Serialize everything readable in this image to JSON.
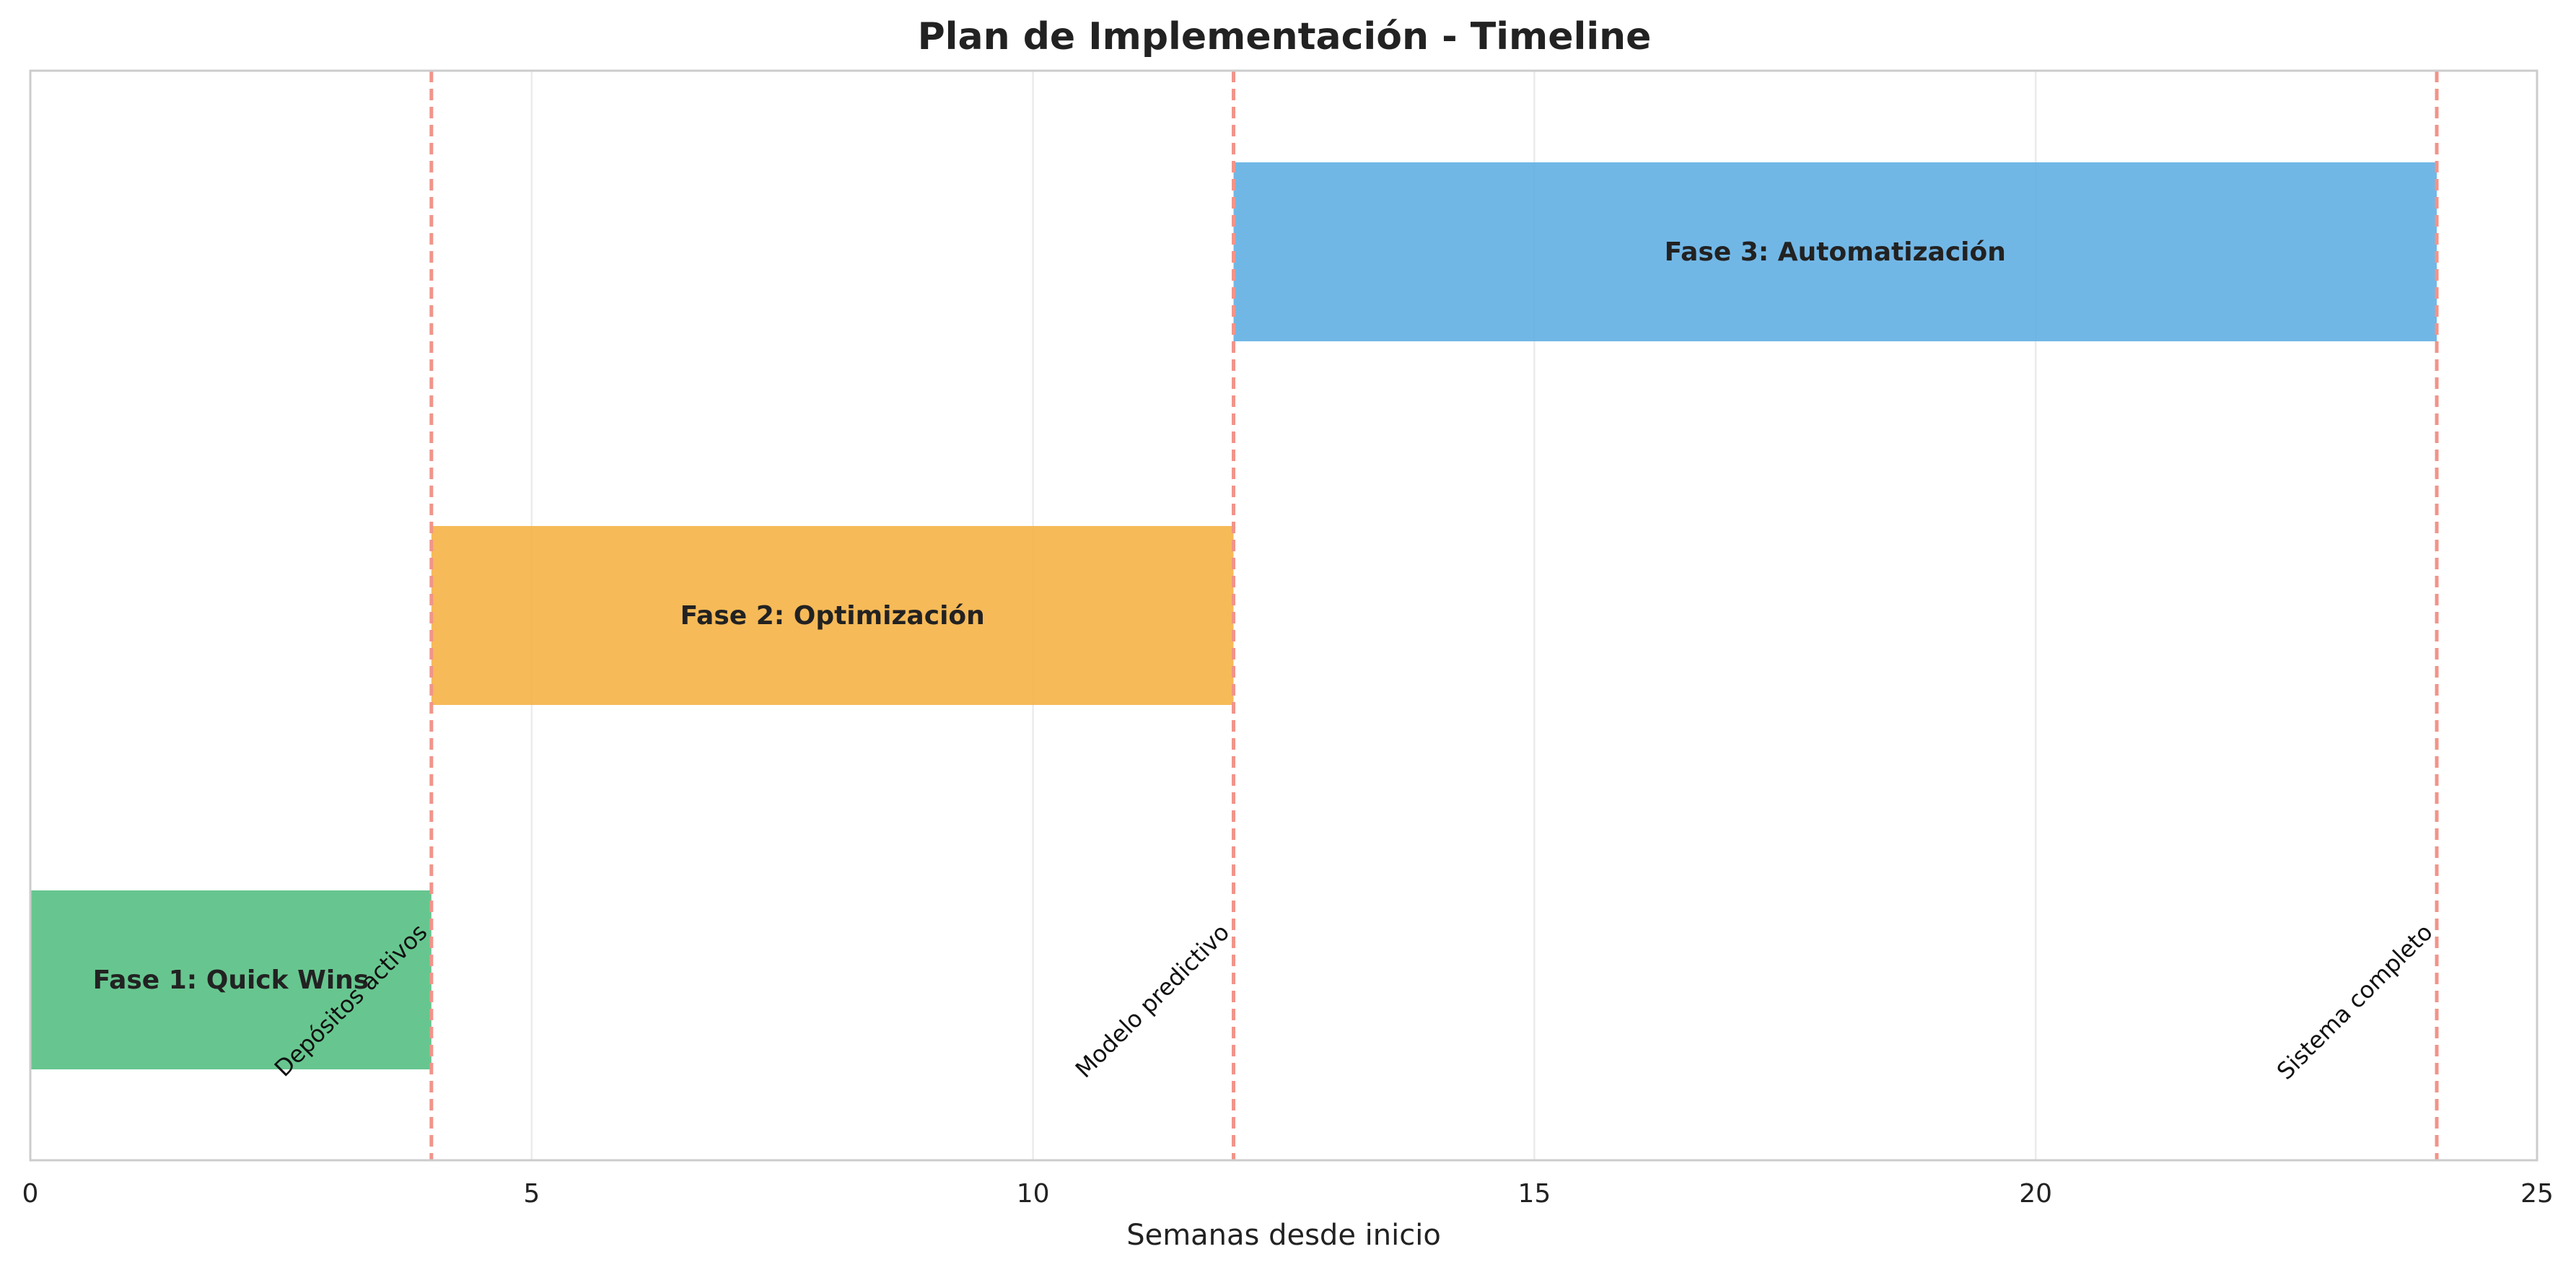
{
  "chart_data": {
    "type": "bar",
    "orientation": "horizontal-gantt",
    "title": "Plan de Implementación - Timeline",
    "xlabel": "Semanas desde inicio",
    "ylabel": "",
    "xlim": [
      0,
      25
    ],
    "xticks": [
      0,
      5,
      10,
      15,
      20,
      25
    ],
    "grid": true,
    "legend": "none",
    "phases": [
      {
        "label": "Fase 1: Quick Wins",
        "start": 0,
        "end": 4,
        "color": "#52BE80"
      },
      {
        "label": "Fase 2: Optimización",
        "start": 4,
        "end": 12,
        "color": "#F5B041"
      },
      {
        "label": "Fase 3: Automatización",
        "start": 12,
        "end": 24,
        "color": "#5DADE2"
      }
    ],
    "milestones": [
      {
        "label": "Depósitos activos",
        "x": 4
      },
      {
        "label": "Modelo predictivo",
        "x": 12
      },
      {
        "label": "Sistema completo",
        "x": 24
      }
    ],
    "milestone_color": "#F1948A"
  }
}
